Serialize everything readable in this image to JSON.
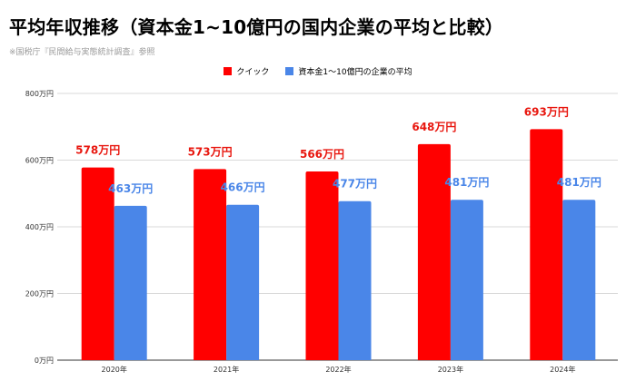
{
  "chart_data": {
    "type": "bar",
    "title": "平均年収推移（資本金1~10億円の国内企業の平均と比較）",
    "subtitle": "※国税庁『民間給与実態統計調査』参照",
    "categories": [
      "2020年",
      "2021年",
      "2022年",
      "2023年",
      "2024年"
    ],
    "series": [
      {
        "name": "クイック",
        "color": "#ff0000",
        "label_color": "#e8170f",
        "values": [
          578,
          573,
          566,
          648,
          693
        ],
        "labels": [
          "578万円",
          "573万円",
          "566万円",
          "648万円",
          "693万円"
        ]
      },
      {
        "name": "資本金1～10億円の企業の平均",
        "color": "#4a86e8",
        "label_color": "#4a86e8",
        "values": [
          463,
          466,
          477,
          481,
          481
        ],
        "labels": [
          "463万円",
          "466万円",
          "477万円",
          "481万円",
          "481万円"
        ]
      }
    ],
    "ylim": [
      0,
      800
    ],
    "yticks": [
      0,
      200,
      400,
      600,
      800
    ],
    "ytick_labels": [
      "0万円",
      "200万円",
      "400万円",
      "600万円",
      "800万円"
    ],
    "grid": true,
    "legend_position": "top-center"
  }
}
